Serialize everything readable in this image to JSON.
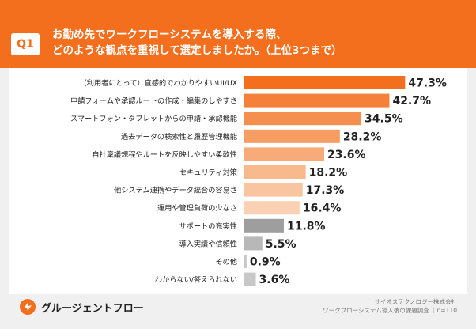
{
  "header": {
    "badge": "Q1",
    "question_line1": "お勤め先でワークフローシステムを導入する際、",
    "question_line2": "どのような観点を重視して選定しましたか。（上位3つまで）"
  },
  "chart_data": {
    "type": "bar",
    "orientation": "horizontal",
    "categories": [
      "（利用者にとって）直感的でわかりやすいUI/UX",
      "申請フォームや承認ルートの作成・編集のしやすさ",
      "スマートフォン・タブレットからの申請・承認機能",
      "過去データの検索性と履歴管理機能",
      "自社稟議規程やルートを反映しやすい柔軟性",
      "セキュリティ対策",
      "他システム連携やデータ統合の容易さ",
      "運用や管理負荷の少なさ",
      "サポートの充実性",
      "導入実績や信頼性",
      "その他",
      "わからない/答えられない"
    ],
    "values": [
      47.3,
      42.7,
      34.5,
      28.2,
      23.6,
      18.2,
      17.3,
      16.4,
      11.8,
      5.5,
      0.9,
      3.6
    ],
    "value_labels": [
      "47.3%",
      "42.7%",
      "34.5%",
      "28.2%",
      "23.6%",
      "18.2%",
      "17.3%",
      "16.4%",
      "11.8%",
      "5.5%",
      "0.9%",
      "3.6%"
    ],
    "colors": [
      "#f36f1d",
      "#f4803a",
      "#f58f4f",
      "#f69d63",
      "#f7ab78",
      "#f8b98d",
      "#f9c5a0",
      "#fad2b3",
      "#9e9e9e",
      "#b8b8b8",
      "#c8c8c8",
      "#c8c8c8"
    ],
    "xlim": [
      0,
      50
    ]
  },
  "source": {
    "line1": "サイオステクノロジー株式会社",
    "line2": "ワークフローシステム導入後の課題調査 ｜n=110"
  },
  "logo": {
    "text": "グルージェントフロー",
    "color": "#f36f1d"
  }
}
